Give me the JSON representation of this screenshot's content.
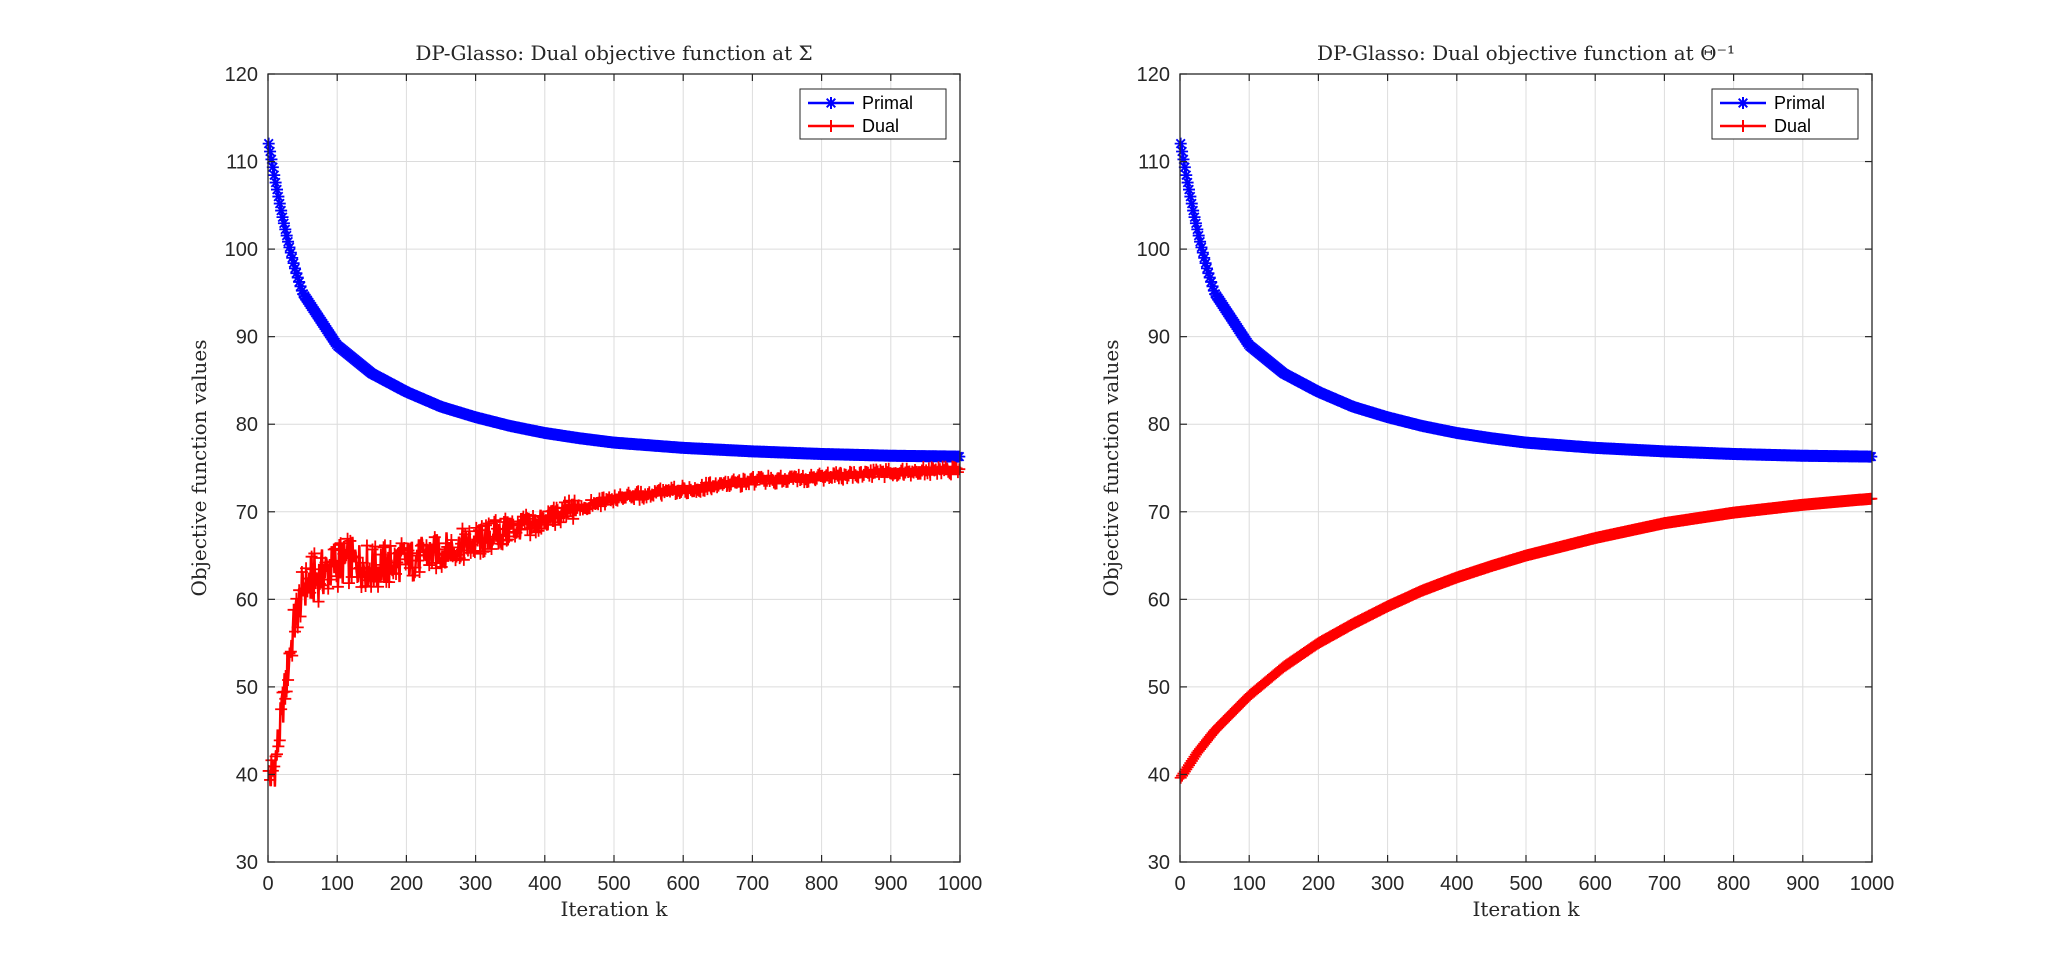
{
  "chart_data": [
    {
      "type": "line",
      "title": "DP-Glasso: Dual objective function at Σ",
      "xlabel": "Iteration k",
      "ylabel": "Objective function values",
      "xlim": [
        0,
        1000
      ],
      "ylim": [
        30,
        120
      ],
      "xticks": [
        0,
        100,
        200,
        300,
        400,
        500,
        600,
        700,
        800,
        900,
        1000
      ],
      "yticks": [
        30,
        40,
        50,
        60,
        70,
        80,
        90,
        100,
        110,
        120
      ],
      "grid": true,
      "legend_position": "top-right",
      "series": [
        {
          "name": "Primal",
          "color": "#0000ff",
          "marker": "asterisk",
          "x": [
            0,
            10,
            20,
            30,
            40,
            50,
            75,
            100,
            150,
            200,
            250,
            300,
            350,
            400,
            450,
            500,
            600,
            700,
            800,
            900,
            1000
          ],
          "y": [
            112.5,
            108,
            104,
            100.5,
            97.5,
            95,
            92,
            89,
            85.8,
            83.7,
            82,
            80.8,
            79.8,
            79,
            78.4,
            77.9,
            77.3,
            76.9,
            76.6,
            76.4,
            76.3
          ]
        },
        {
          "name": "Dual",
          "color": "#ff0000",
          "marker": "plus",
          "x": [
            0,
            10,
            20,
            30,
            40,
            50,
            60,
            80,
            100,
            120,
            150,
            180,
            200,
            250,
            300,
            350,
            400,
            450,
            500,
            600,
            700,
            800,
            900,
            1000
          ],
          "y": [
            39,
            41,
            47,
            53,
            58,
            61,
            62,
            63,
            64,
            64.5,
            63.5,
            64,
            64.5,
            65.5,
            66.5,
            68,
            69,
            70.5,
            71.5,
            72.5,
            73.5,
            74,
            74.5,
            74.8
          ]
        }
      ]
    },
    {
      "type": "line",
      "title": "DP-Glasso: Dual objective function at Θ⁻¹",
      "xlabel": "Iteration k",
      "ylabel": "Objective function values",
      "xlim": [
        0,
        1000
      ],
      "ylim": [
        30,
        120
      ],
      "xticks": [
        0,
        100,
        200,
        300,
        400,
        500,
        600,
        700,
        800,
        900,
        1000
      ],
      "yticks": [
        30,
        40,
        50,
        60,
        70,
        80,
        90,
        100,
        110,
        120
      ],
      "grid": true,
      "legend_position": "top-right",
      "series": [
        {
          "name": "Primal",
          "color": "#0000ff",
          "marker": "asterisk",
          "x": [
            0,
            10,
            20,
            30,
            40,
            50,
            75,
            100,
            150,
            200,
            250,
            300,
            350,
            400,
            450,
            500,
            600,
            700,
            800,
            900,
            1000
          ],
          "y": [
            112.5,
            108,
            104,
            100.5,
            97.5,
            95,
            92,
            89,
            85.8,
            83.7,
            82,
            80.8,
            79.8,
            79,
            78.4,
            77.9,
            77.3,
            76.9,
            76.6,
            76.4,
            76.3
          ]
        },
        {
          "name": "Dual",
          "color": "#ff0000",
          "marker": "plus",
          "x": [
            0,
            25,
            50,
            100,
            150,
            200,
            250,
            300,
            350,
            400,
            450,
            500,
            600,
            700,
            800,
            900,
            1000
          ],
          "y": [
            39.5,
            42.5,
            45,
            49,
            52.3,
            55,
            57.2,
            59.2,
            61,
            62.5,
            63.8,
            65,
            67,
            68.7,
            69.9,
            70.8,
            71.5
          ]
        }
      ]
    }
  ]
}
